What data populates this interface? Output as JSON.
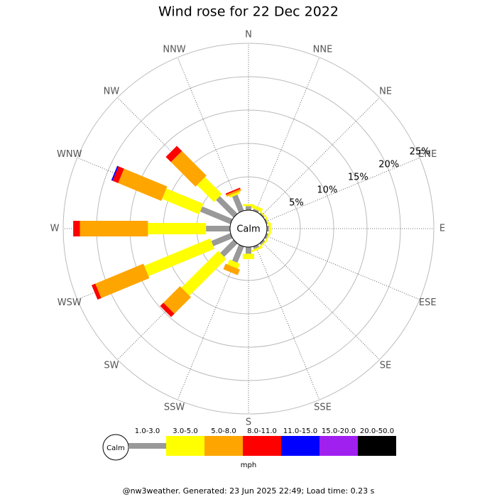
{
  "chart_data": {
    "type": "windrose",
    "title": "Wind rose for 22 Dec 2022",
    "directions": [
      "N",
      "NNE",
      "NE",
      "ENE",
      "E",
      "ESE",
      "SE",
      "SSE",
      "S",
      "SSW",
      "SW",
      "WSW",
      "W",
      "WNW",
      "NW",
      "NNW"
    ],
    "calm_label": "Calm",
    "rlim": [
      0,
      25
    ],
    "rticks": [
      {
        "value": 5,
        "label": "5%"
      },
      {
        "value": 10,
        "label": "10%"
      },
      {
        "value": 15,
        "label": "15%"
      },
      {
        "value": 20,
        "label": "20%"
      },
      {
        "value": 25,
        "label": "25%"
      }
    ],
    "grid": true,
    "unit": "mph",
    "series": [
      {
        "name": "1.0-3.0",
        "color": "#999999",
        "values": [
          0.6,
          0.3,
          0.2,
          0.2,
          0.3,
          0.3,
          0.3,
          0.4,
          1.0,
          2.6,
          2.8,
          3.1,
          3.6,
          4.9,
          3.7,
          2.6
        ]
      },
      {
        "name": "3.0-5.0",
        "color": "#ffff00",
        "values": [
          0.3,
          0.5,
          0.2,
          0.2,
          0.3,
          0.2,
          0.2,
          0.3,
          0.8,
          0.8,
          7.8,
          10.7,
          8.7,
          6.0,
          3.6,
          0.3
        ]
      },
      {
        "name": "5.0-8.0",
        "color": "#ffa500",
        "values": [
          0,
          0,
          0,
          0,
          0,
          0,
          0,
          0,
          0,
          0.9,
          3.5,
          7.8,
          10.2,
          7.0,
          5.2,
          0.3
        ]
      },
      {
        "name": "8.0-11.0",
        "color": "#ff0000",
        "values": [
          0,
          0,
          0,
          0,
          0,
          0,
          0,
          0,
          0,
          0,
          0.7,
          0.6,
          1.0,
          0.9,
          1.1,
          0.2
        ]
      },
      {
        "name": "11.0-15.0",
        "color": "#0000ff",
        "values": [
          0,
          0,
          0,
          0,
          0,
          0,
          0,
          0,
          0,
          0,
          0,
          0,
          0,
          0.2,
          0,
          0
        ]
      },
      {
        "name": "15.0-20.0",
        "color": "#a020f0",
        "values": [
          0,
          0,
          0,
          0,
          0,
          0,
          0,
          0,
          0,
          0,
          0,
          0,
          0,
          0,
          0,
          0
        ]
      },
      {
        "name": "20.0-50.0",
        "color": "#000000",
        "values": [
          0,
          0,
          0,
          0,
          0,
          0,
          0,
          0,
          0,
          0,
          0,
          0,
          0,
          0,
          0,
          0
        ]
      }
    ]
  },
  "footer": "@nw3weather. Generated: 23 Jun 2025 22:49; Load time: 0.23 s"
}
